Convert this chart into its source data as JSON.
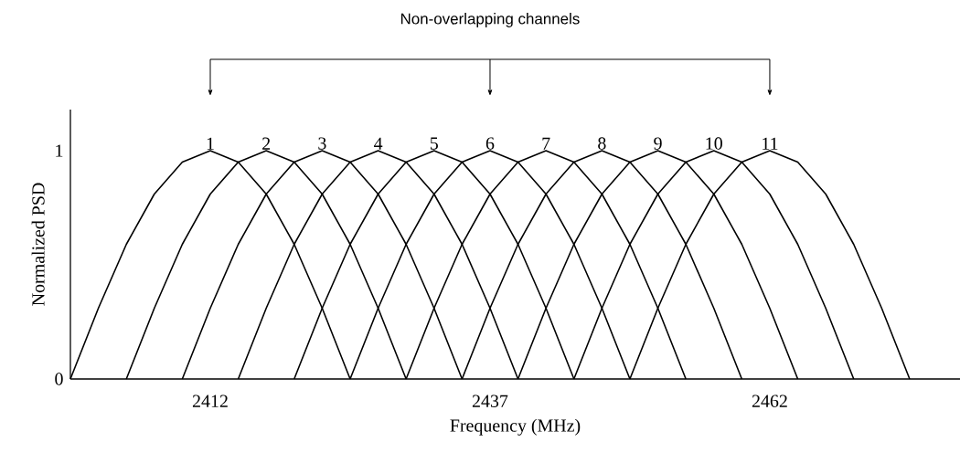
{
  "chart_data": {
    "type": "line",
    "xlabel": "Frequency (MHz)",
    "ylabel": "Normalized PSD",
    "annotations": [
      "Non-overlapping channels"
    ],
    "xlim": [
      2399.5,
      2479
    ],
    "ylim": [
      0,
      1.18
    ],
    "xticks": [
      2412,
      2437,
      2462
    ],
    "yticks": [
      0,
      1
    ],
    "grid": false,
    "legend": false,
    "marker": "none",
    "line_style": "solid",
    "series": [
      {
        "name": "1",
        "color": "#000000",
        "x": [
          2399.5,
          2402,
          2404.5,
          2407,
          2409.5,
          2412,
          2414.5,
          2417,
          2419.5,
          2422,
          2424.5
        ],
        "values": [
          0,
          0.31,
          0.59,
          0.81,
          0.95,
          1,
          0.95,
          0.81,
          0.59,
          0.31,
          0
        ]
      },
      {
        "name": "2",
        "color": "#000000",
        "x": [
          2404.5,
          2407,
          2409.5,
          2412,
          2414.5,
          2417,
          2419.5,
          2422,
          2424.5,
          2427,
          2429.5
        ],
        "values": [
          0,
          0.31,
          0.59,
          0.81,
          0.95,
          1,
          0.95,
          0.81,
          0.59,
          0.31,
          0
        ]
      },
      {
        "name": "3",
        "color": "#000000",
        "x": [
          2409.5,
          2412,
          2414.5,
          2417,
          2419.5,
          2422,
          2424.5,
          2427,
          2429.5,
          2432,
          2434.5
        ],
        "values": [
          0,
          0.31,
          0.59,
          0.81,
          0.95,
          1,
          0.95,
          0.81,
          0.59,
          0.31,
          0
        ]
      },
      {
        "name": "4",
        "color": "#000000",
        "x": [
          2414.5,
          2417,
          2419.5,
          2422,
          2424.5,
          2427,
          2429.5,
          2432,
          2434.5,
          2437,
          2439.5
        ],
        "values": [
          0,
          0.31,
          0.59,
          0.81,
          0.95,
          1,
          0.95,
          0.81,
          0.59,
          0.31,
          0
        ]
      },
      {
        "name": "5",
        "color": "#000000",
        "x": [
          2419.5,
          2422,
          2424.5,
          2427,
          2429.5,
          2432,
          2434.5,
          2437,
          2439.5,
          2442,
          2444.5
        ],
        "values": [
          0,
          0.31,
          0.59,
          0.81,
          0.95,
          1,
          0.95,
          0.81,
          0.59,
          0.31,
          0
        ]
      },
      {
        "name": "6",
        "color": "#000000",
        "x": [
          2424.5,
          2427,
          2429.5,
          2432,
          2434.5,
          2437,
          2439.5,
          2442,
          2444.5,
          2447,
          2449.5
        ],
        "values": [
          0,
          0.31,
          0.59,
          0.81,
          0.95,
          1,
          0.95,
          0.81,
          0.59,
          0.31,
          0
        ]
      },
      {
        "name": "7",
        "color": "#000000",
        "x": [
          2429.5,
          2432,
          2434.5,
          2437,
          2439.5,
          2442,
          2444.5,
          2447,
          2449.5,
          2452,
          2454.5
        ],
        "values": [
          0,
          0.31,
          0.59,
          0.81,
          0.95,
          1,
          0.95,
          0.81,
          0.59,
          0.31,
          0
        ]
      },
      {
        "name": "8",
        "color": "#000000",
        "x": [
          2434.5,
          2437,
          2439.5,
          2442,
          2444.5,
          2447,
          2449.5,
          2452,
          2454.5,
          2457,
          2459.5
        ],
        "values": [
          0,
          0.31,
          0.59,
          0.81,
          0.95,
          1,
          0.95,
          0.81,
          0.59,
          0.31,
          0
        ]
      },
      {
        "name": "9",
        "color": "#000000",
        "x": [
          2439.5,
          2442,
          2444.5,
          2447,
          2449.5,
          2452,
          2454.5,
          2457,
          2459.5,
          2462,
          2464.5
        ],
        "values": [
          0,
          0.31,
          0.59,
          0.81,
          0.95,
          1,
          0.95,
          0.81,
          0.59,
          0.31,
          0
        ]
      },
      {
        "name": "10",
        "color": "#000000",
        "x": [
          2444.5,
          2447,
          2449.5,
          2452,
          2454.5,
          2457,
          2459.5,
          2462,
          2464.5,
          2467,
          2469.5
        ],
        "values": [
          0,
          0.31,
          0.59,
          0.81,
          0.95,
          1,
          0.95,
          0.81,
          0.59,
          0.31,
          0
        ]
      },
      {
        "name": "11",
        "color": "#000000",
        "x": [
          2449.5,
          2452,
          2454.5,
          2457,
          2459.5,
          2462,
          2464.5,
          2467,
          2469.5,
          2472,
          2474.5
        ],
        "values": [
          0,
          0.31,
          0.59,
          0.81,
          0.95,
          1,
          0.95,
          0.81,
          0.59,
          0.31,
          0
        ]
      }
    ]
  }
}
